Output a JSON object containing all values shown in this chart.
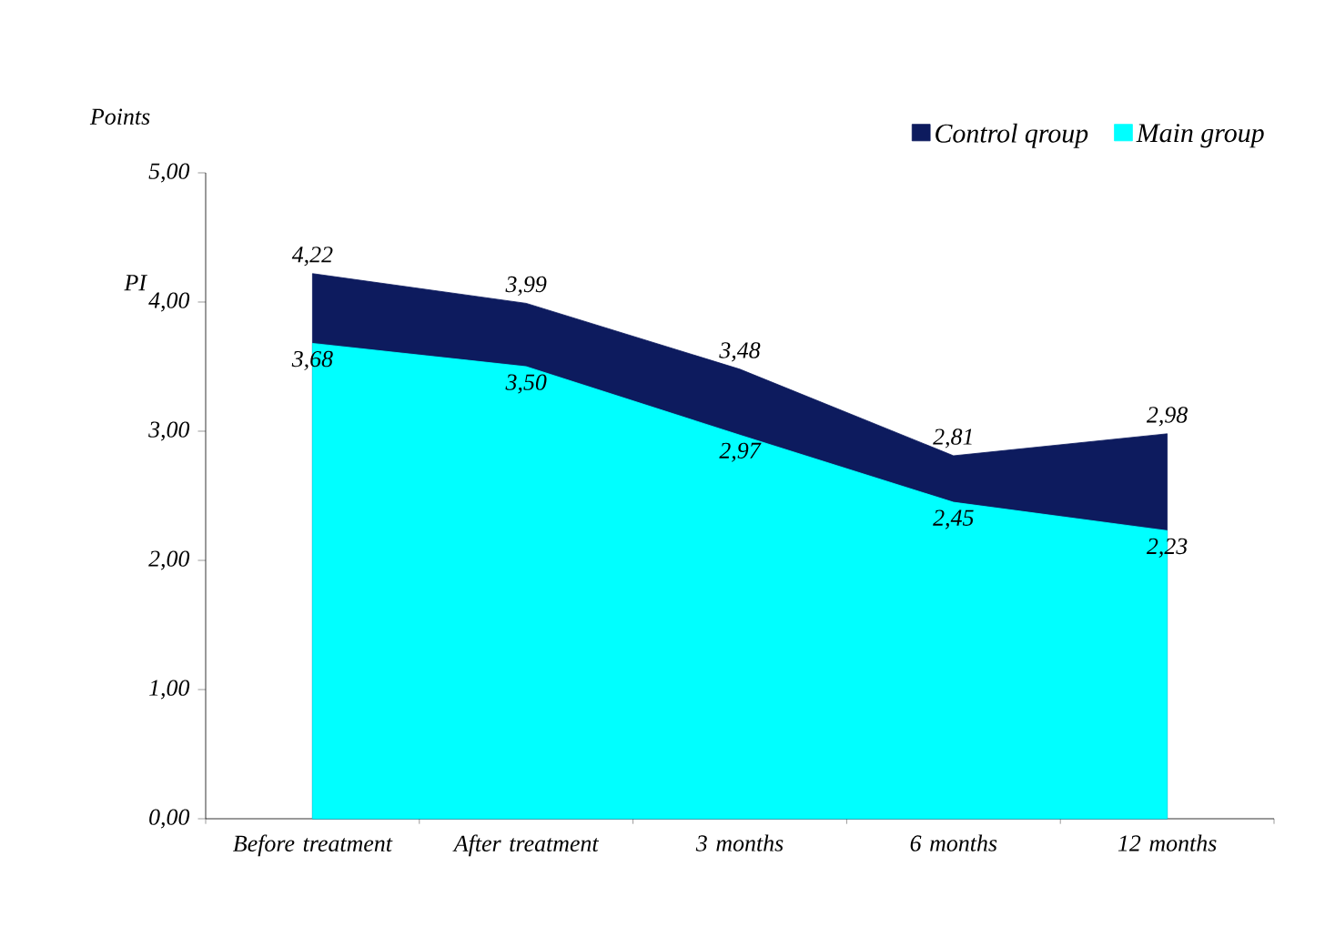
{
  "chart_data": {
    "type": "area",
    "ylabel": "PI",
    "annotations": [
      "Points"
    ],
    "categories": [
      "Before treatment",
      "After treatment",
      "3 months",
      "6 months",
      "12 months"
    ],
    "series": [
      {
        "name": "Control qroup",
        "color": "#0d1b5e",
        "values": [
          4.22,
          3.99,
          3.48,
          2.81,
          2.98
        ],
        "value_labels": [
          "4,22",
          "3,99",
          "3,48",
          "2,81",
          "2,98"
        ]
      },
      {
        "name": "Main group",
        "color": "#00ffff",
        "values": [
          3.68,
          3.5,
          2.97,
          2.45,
          2.23
        ],
        "value_labels": [
          "3,68",
          "3,50",
          "2,97",
          "2,45",
          "2,23"
        ]
      }
    ],
    "ylim": [
      0,
      5
    ],
    "yticks": [
      {
        "value": 0,
        "label": "0,00"
      },
      {
        "value": 1,
        "label": "1,00"
      },
      {
        "value": 2,
        "label": "2,00"
      },
      {
        "value": 3,
        "label": "3,00"
      },
      {
        "value": 4,
        "label": "4,00"
      },
      {
        "value": 5,
        "label": "5,00"
      }
    ],
    "grid": false,
    "legend": "top right"
  }
}
